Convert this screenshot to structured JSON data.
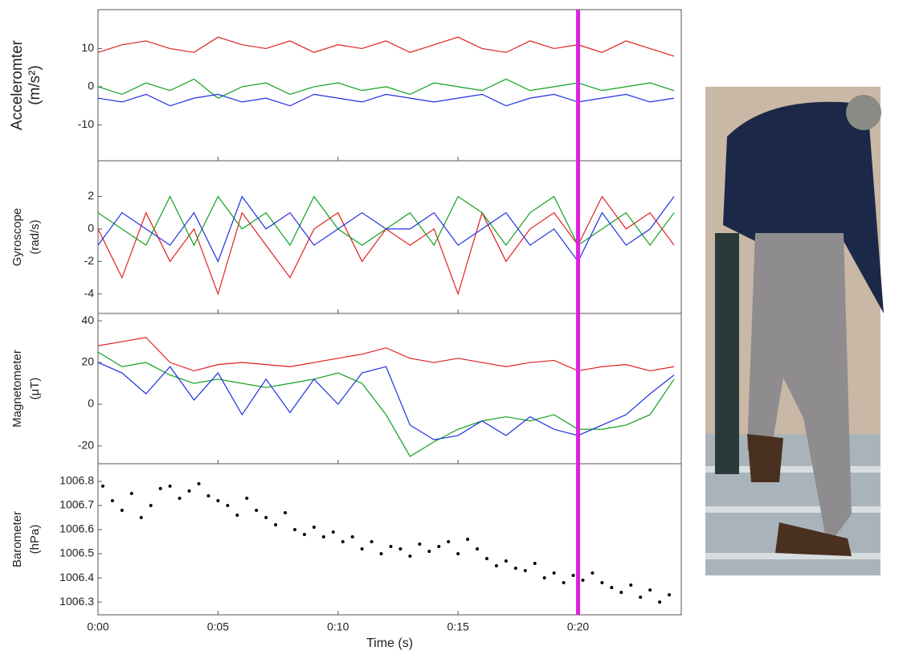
{
  "chart_data": [
    {
      "type": "line",
      "ylabel": [
        "Acceleromter",
        "(m/s²)"
      ],
      "x": [
        0,
        1,
        2,
        3,
        4,
        5,
        6,
        7,
        8,
        9,
        10,
        11,
        12,
        13,
        14,
        15,
        16,
        17,
        18,
        19,
        20,
        21,
        22,
        23,
        24
      ],
      "xlim": [
        0,
        24.3
      ],
      "ylim": [
        -19.4,
        20.2
      ],
      "yticks": [
        -10,
        0,
        10
      ],
      "series": [
        {
          "color": "#e02020",
          "values": [
            9,
            11,
            12,
            10,
            9,
            13,
            11,
            10,
            12,
            9,
            11,
            10,
            12,
            9,
            11,
            13,
            10,
            9,
            12,
            10,
            11,
            9,
            12,
            10,
            8
          ]
        },
        {
          "color": "#10a020",
          "values": [
            0,
            -2,
            1,
            -1,
            2,
            -3,
            0,
            1,
            -2,
            0,
            1,
            -1,
            0,
            -2,
            1,
            0,
            -1,
            2,
            -1,
            0,
            1,
            -1,
            0,
            1,
            -1
          ]
        },
        {
          "color": "#2030e0",
          "values": [
            -3,
            -4,
            -2,
            -5,
            -3,
            -2,
            -4,
            -3,
            -5,
            -2,
            -3,
            -4,
            -2,
            -3,
            -4,
            -3,
            -2,
            -5,
            -3,
            -2,
            -4,
            -3,
            -2,
            -4,
            -3
          ]
        }
      ]
    },
    {
      "type": "line",
      "ylabel": [
        "Gyroscope",
        "(rad/s)"
      ],
      "x": [
        0,
        1,
        2,
        3,
        4,
        5,
        6,
        7,
        8,
        9,
        10,
        11,
        12,
        13,
        14,
        15,
        16,
        17,
        18,
        19,
        20,
        21,
        22,
        23,
        24
      ],
      "xlim": [
        0,
        24.3
      ],
      "ylim": [
        -5.2,
        4.2
      ],
      "yticks": [
        -4,
        -2,
        0,
        2
      ],
      "series": [
        {
          "color": "#e02020",
          "values": [
            0,
            -3,
            1,
            -2,
            0,
            -4,
            1,
            -1,
            -3,
            0,
            1,
            -2,
            0,
            -1,
            0,
            -4,
            1,
            -2,
            0,
            1,
            -1,
            2,
            0,
            1,
            -1
          ]
        },
        {
          "color": "#10a020",
          "values": [
            1,
            0,
            -1,
            2,
            -1,
            2,
            0,
            1,
            -1,
            2,
            0,
            -1,
            0,
            1,
            -1,
            2,
            1,
            -1,
            1,
            2,
            -1,
            0,
            1,
            -1,
            1
          ]
        },
        {
          "color": "#2030e0",
          "values": [
            -1,
            1,
            0,
            -1,
            1,
            -2,
            2,
            0,
            1,
            -1,
            0,
            1,
            0,
            0,
            1,
            -1,
            0,
            1,
            -1,
            0,
            -2,
            1,
            -1,
            0,
            2
          ]
        }
      ]
    },
    {
      "type": "line",
      "ylabel": [
        "Magnetometer",
        "(μT)"
      ],
      "x": [
        0,
        1,
        2,
        3,
        4,
        5,
        6,
        7,
        8,
        9,
        10,
        11,
        12,
        13,
        14,
        15,
        16,
        17,
        18,
        19,
        20,
        21,
        22,
        23,
        24
      ],
      "xlim": [
        0,
        24.3
      ],
      "ylim": [
        -28.5,
        43.5
      ],
      "yticks": [
        -20,
        0,
        20,
        40
      ],
      "series": [
        {
          "color": "#e02020",
          "values": [
            28,
            30,
            32,
            20,
            16,
            19,
            20,
            19,
            18,
            20,
            22,
            24,
            27,
            22,
            20,
            22,
            20,
            18,
            20,
            21,
            16,
            18,
            19,
            16,
            18
          ]
        },
        {
          "color": "#10a020",
          "values": [
            25,
            18,
            20,
            14,
            10,
            12,
            10,
            8,
            10,
            12,
            15,
            10,
            -5,
            -25,
            -18,
            -12,
            -8,
            -6,
            -8,
            -5,
            -12,
            -12,
            -10,
            -5,
            12
          ]
        },
        {
          "color": "#2030e0",
          "values": [
            20,
            15,
            5,
            18,
            2,
            15,
            -5,
            12,
            -4,
            12,
            0,
            15,
            18,
            -10,
            -17,
            -15,
            -8,
            -15,
            -6,
            -12,
            -15,
            -10,
            -5,
            5,
            14
          ]
        }
      ]
    },
    {
      "type": "scatter",
      "ylabel": [
        "Barometer",
        "(hPa)"
      ],
      "xlabel": "Time (s)",
      "color": "#000000",
      "x": [
        0.2,
        0.6,
        1.0,
        1.4,
        1.8,
        2.2,
        2.6,
        3.0,
        3.4,
        3.8,
        4.2,
        4.6,
        5.0,
        5.4,
        5.8,
        6.2,
        6.6,
        7.0,
        7.4,
        7.8,
        8.2,
        8.6,
        9.0,
        9.4,
        9.8,
        10.2,
        10.6,
        11.0,
        11.4,
        11.8,
        12.2,
        12.6,
        13.0,
        13.4,
        13.8,
        14.2,
        14.6,
        15.0,
        15.4,
        15.8,
        16.2,
        16.6,
        17.0,
        17.4,
        17.8,
        18.2,
        18.6,
        19.0,
        19.4,
        19.8,
        20.2,
        20.6,
        21.0,
        21.4,
        21.8,
        22.2,
        22.6,
        23.0,
        23.4,
        23.8
      ],
      "values": [
        1006.78,
        1006.72,
        1006.68,
        1006.75,
        1006.65,
        1006.7,
        1006.77,
        1006.78,
        1006.73,
        1006.76,
        1006.79,
        1006.74,
        1006.72,
        1006.7,
        1006.66,
        1006.73,
        1006.68,
        1006.65,
        1006.62,
        1006.67,
        1006.6,
        1006.58,
        1006.61,
        1006.57,
        1006.59,
        1006.55,
        1006.57,
        1006.52,
        1006.55,
        1006.5,
        1006.53,
        1006.52,
        1006.49,
        1006.54,
        1006.51,
        1006.53,
        1006.55,
        1006.5,
        1006.56,
        1006.52,
        1006.48,
        1006.45,
        1006.47,
        1006.44,
        1006.43,
        1006.46,
        1006.4,
        1006.42,
        1006.38,
        1006.41,
        1006.39,
        1006.42,
        1006.38,
        1006.36,
        1006.34,
        1006.37,
        1006.32,
        1006.35,
        1006.3,
        1006.33
      ],
      "xlim": [
        0,
        24.3
      ],
      "ylim": [
        1006.247,
        1006.873
      ],
      "yticks": [
        1006.3,
        1006.4,
        1006.5,
        1006.6,
        1006.7,
        1006.8
      ],
      "xticks": [
        {
          "value": 0,
          "label": "0:00"
        },
        {
          "value": 5,
          "label": "0:05"
        },
        {
          "value": 10,
          "label": "0:10"
        },
        {
          "value": 15,
          "label": "0:15"
        },
        {
          "value": 20,
          "label": "0:20"
        }
      ],
      "marker": {
        "x": 20,
        "color": "#e020e0"
      }
    }
  ]
}
